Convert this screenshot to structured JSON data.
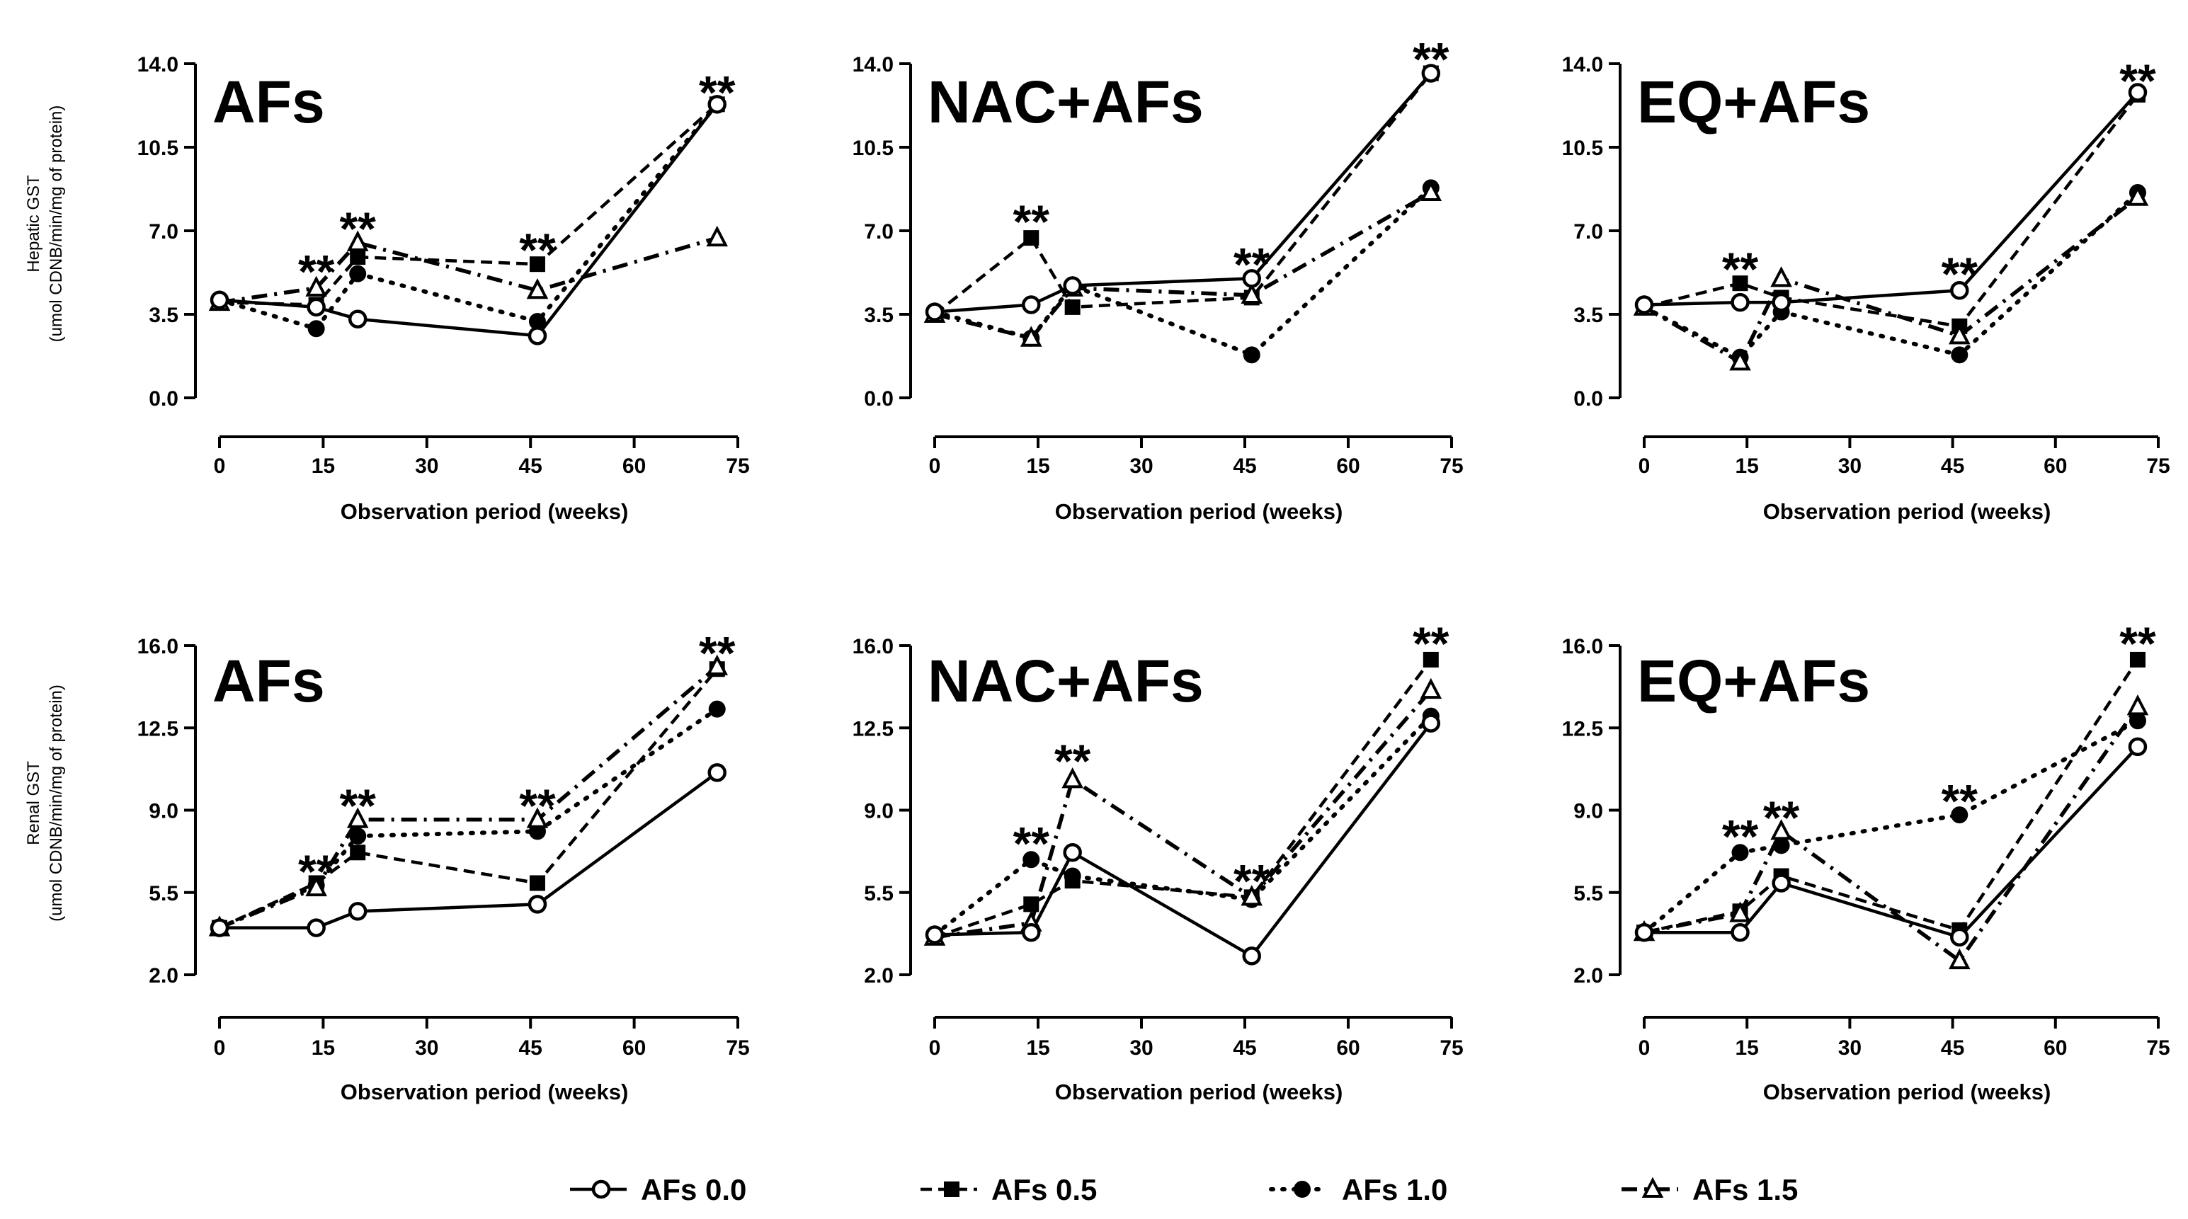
{
  "figure": {
    "legend": [
      {
        "label": "AFs 0.0",
        "marker": "circle-open",
        "line": "solid"
      },
      {
        "label": "AFs 0.5",
        "marker": "square-filled",
        "line": "dashed"
      },
      {
        "label": "AFs 1.0",
        "marker": "circle-filled",
        "line": "dotted"
      },
      {
        "label": "AFs 1.5",
        "marker": "triangle-open",
        "line": "dashdot"
      }
    ]
  },
  "chart_data": [
    {
      "type": "line",
      "title": "AFs",
      "xlabel": "Observation period (weeks)",
      "ylabel": [
        "Hepatic GST",
        "(umol CDNB/min/mg of protein)"
      ],
      "x_ticks": [
        "0",
        "15",
        "30",
        "45",
        "60",
        "75"
      ],
      "y_ticks": [
        "0.0",
        "3.5",
        "7.0",
        "10.5",
        "14.0"
      ],
      "xlim": [
        0,
        75
      ],
      "ylim": [
        0,
        14
      ],
      "x": [
        0,
        14,
        20,
        46,
        72
      ],
      "series": [
        {
          "name": "AFs 0.0",
          "values": [
            4.1,
            3.8,
            3.3,
            2.6,
            12.3
          ]
        },
        {
          "name": "AFs 0.5",
          "values": [
            4.0,
            3.9,
            5.9,
            5.6,
            12.3
          ]
        },
        {
          "name": "AFs 1.0",
          "values": [
            4.1,
            2.9,
            5.2,
            3.2,
            12.3
          ]
        },
        {
          "name": "AFs 1.5",
          "values": [
            4.0,
            4.6,
            6.5,
            4.5,
            6.7
          ]
        }
      ],
      "annotations": [
        {
          "text": "**",
          "x": 14,
          "y": 5.5
        },
        {
          "text": "**",
          "x": 20,
          "y": 7.3
        },
        {
          "text": "**",
          "x": 46,
          "y": 6.4
        },
        {
          "text": "**",
          "x": 72,
          "y": 13.0
        }
      ]
    },
    {
      "type": "line",
      "title": "NAC+AFs",
      "xlabel": "Observation period (weeks)",
      "ylabel": [],
      "x_ticks": [
        "0",
        "15",
        "30",
        "45",
        "60",
        "75"
      ],
      "y_ticks": [
        "0.0",
        "3.5",
        "7.0",
        "10.5",
        "14.0"
      ],
      "xlim": [
        0,
        75
      ],
      "ylim": [
        0,
        14
      ],
      "x": [
        0,
        14,
        20,
        46,
        72
      ],
      "series": [
        {
          "name": "AFs 0.0",
          "values": [
            3.6,
            3.9,
            4.7,
            5.0,
            13.6
          ]
        },
        {
          "name": "AFs 0.5",
          "values": [
            3.5,
            6.7,
            3.8,
            4.2,
            13.6
          ]
        },
        {
          "name": "AFs 1.0",
          "values": [
            3.6,
            2.5,
            4.7,
            1.8,
            8.8
          ]
        },
        {
          "name": "AFs 1.5",
          "values": [
            3.5,
            2.5,
            4.6,
            4.3,
            8.6
          ]
        }
      ],
      "annotations": [
        {
          "text": "**",
          "x": 14,
          "y": 7.6
        },
        {
          "text": "**",
          "x": 46,
          "y": 5.8
        },
        {
          "text": "**",
          "x": 72,
          "y": 14.4
        }
      ]
    },
    {
      "type": "line",
      "title": "EQ+AFs",
      "xlabel": "Observation period (weeks)",
      "ylabel": [],
      "x_ticks": [
        "0",
        "15",
        "30",
        "45",
        "60",
        "75"
      ],
      "y_ticks": [
        "0.0",
        "3.5",
        "7.0",
        "10.5",
        "14.0"
      ],
      "xlim": [
        0,
        75
      ],
      "ylim": [
        0,
        14
      ],
      "x": [
        0,
        14,
        20,
        46,
        72
      ],
      "series": [
        {
          "name": "AFs 0.0",
          "values": [
            3.9,
            4.0,
            4.0,
            4.5,
            12.8
          ]
        },
        {
          "name": "AFs 0.5",
          "values": [
            3.8,
            4.8,
            4.2,
            3.0,
            12.7
          ]
        },
        {
          "name": "AFs 1.0",
          "values": [
            3.8,
            1.7,
            3.6,
            1.8,
            8.6
          ]
        },
        {
          "name": "AFs 1.5",
          "values": [
            3.8,
            1.5,
            5.0,
            2.6,
            8.4
          ]
        }
      ],
      "annotations": [
        {
          "text": "**",
          "x": 14,
          "y": 5.6
        },
        {
          "text": "**",
          "x": 46,
          "y": 5.4
        },
        {
          "text": "**",
          "x": 72,
          "y": 13.5
        }
      ]
    },
    {
      "type": "line",
      "title": "AFs",
      "xlabel": "Observation period (weeks)",
      "ylabel": [
        "Renal GST",
        "(umol CDNB/min/mg of protein)"
      ],
      "x_ticks": [
        "0",
        "15",
        "30",
        "45",
        "60",
        "75"
      ],
      "y_ticks": [
        "2.0",
        "5.5",
        "9.0",
        "12.5",
        "16.0"
      ],
      "xlim": [
        0,
        75
      ],
      "ylim": [
        2,
        16
      ],
      "x": [
        0,
        14,
        20,
        46,
        72
      ],
      "series": [
        {
          "name": "AFs 0.0",
          "values": [
            4.0,
            4.0,
            4.7,
            5.0,
            10.6
          ]
        },
        {
          "name": "AFs 0.5",
          "values": [
            4.0,
            5.9,
            7.2,
            5.9,
            15.0
          ]
        },
        {
          "name": "AFs 1.0",
          "values": [
            4.0,
            5.8,
            7.9,
            8.1,
            13.3
          ]
        },
        {
          "name": "AFs 1.5",
          "values": [
            4.0,
            5.7,
            8.6,
            8.6,
            15.1
          ]
        }
      ],
      "annotations": [
        {
          "text": "**",
          "x": 14,
          "y": 6.6
        },
        {
          "text": "**",
          "x": 20,
          "y": 9.4
        },
        {
          "text": "**",
          "x": 46,
          "y": 9.4
        },
        {
          "text": "**",
          "x": 72,
          "y": 15.9
        }
      ]
    },
    {
      "type": "line",
      "title": "NAC+AFs",
      "xlabel": "Observation period (weeks)",
      "ylabel": [],
      "x_ticks": [
        "0",
        "15",
        "30",
        "45",
        "60",
        "75"
      ],
      "y_ticks": [
        "2.0",
        "5.5",
        "9.0",
        "12.5",
        "16.0"
      ],
      "xlim": [
        0,
        75
      ],
      "ylim": [
        2,
        16
      ],
      "x": [
        0,
        14,
        20,
        46,
        72
      ],
      "series": [
        {
          "name": "AFs 0.0",
          "values": [
            3.7,
            3.8,
            7.2,
            2.8,
            12.7
          ]
        },
        {
          "name": "AFs 0.5",
          "values": [
            3.6,
            5.0,
            6.0,
            5.3,
            15.4
          ]
        },
        {
          "name": "AFs 1.0",
          "values": [
            3.7,
            6.9,
            6.2,
            5.2,
            13.0
          ]
        },
        {
          "name": "AFs 1.5",
          "values": [
            3.6,
            4.2,
            10.3,
            5.3,
            14.1
          ]
        }
      ],
      "annotations": [
        {
          "text": "**",
          "x": 14,
          "y": 7.8
        },
        {
          "text": "**",
          "x": 20,
          "y": 11.3
        },
        {
          "text": "**",
          "x": 46,
          "y": 6.2
        },
        {
          "text": "**",
          "x": 72,
          "y": 16.3
        }
      ]
    },
    {
      "type": "line",
      "title": "EQ+AFs",
      "xlabel": "Observation period (weeks)",
      "ylabel": [],
      "x_ticks": [
        "0",
        "15",
        "30",
        "45",
        "60",
        "75"
      ],
      "y_ticks": [
        "2.0",
        "5.5",
        "9.0",
        "12.5",
        "16.0"
      ],
      "xlim": [
        0,
        75
      ],
      "ylim": [
        2,
        16
      ],
      "x": [
        0,
        14,
        20,
        46,
        72
      ],
      "series": [
        {
          "name": "AFs 0.0",
          "values": [
            3.8,
            3.8,
            5.9,
            3.6,
            11.7
          ]
        },
        {
          "name": "AFs 0.5",
          "values": [
            3.8,
            4.7,
            6.2,
            3.9,
            15.4
          ]
        },
        {
          "name": "AFs 1.0",
          "values": [
            3.8,
            7.2,
            7.5,
            8.8,
            12.8
          ]
        },
        {
          "name": "AFs 1.5",
          "values": [
            3.8,
            4.6,
            8.1,
            2.6,
            13.4
          ]
        }
      ],
      "annotations": [
        {
          "text": "**",
          "x": 14,
          "y": 8.1
        },
        {
          "text": "**",
          "x": 20,
          "y": 8.9
        },
        {
          "text": "**",
          "x": 46,
          "y": 9.6
        },
        {
          "text": "**",
          "x": 72,
          "y": 16.3
        }
      ]
    }
  ]
}
